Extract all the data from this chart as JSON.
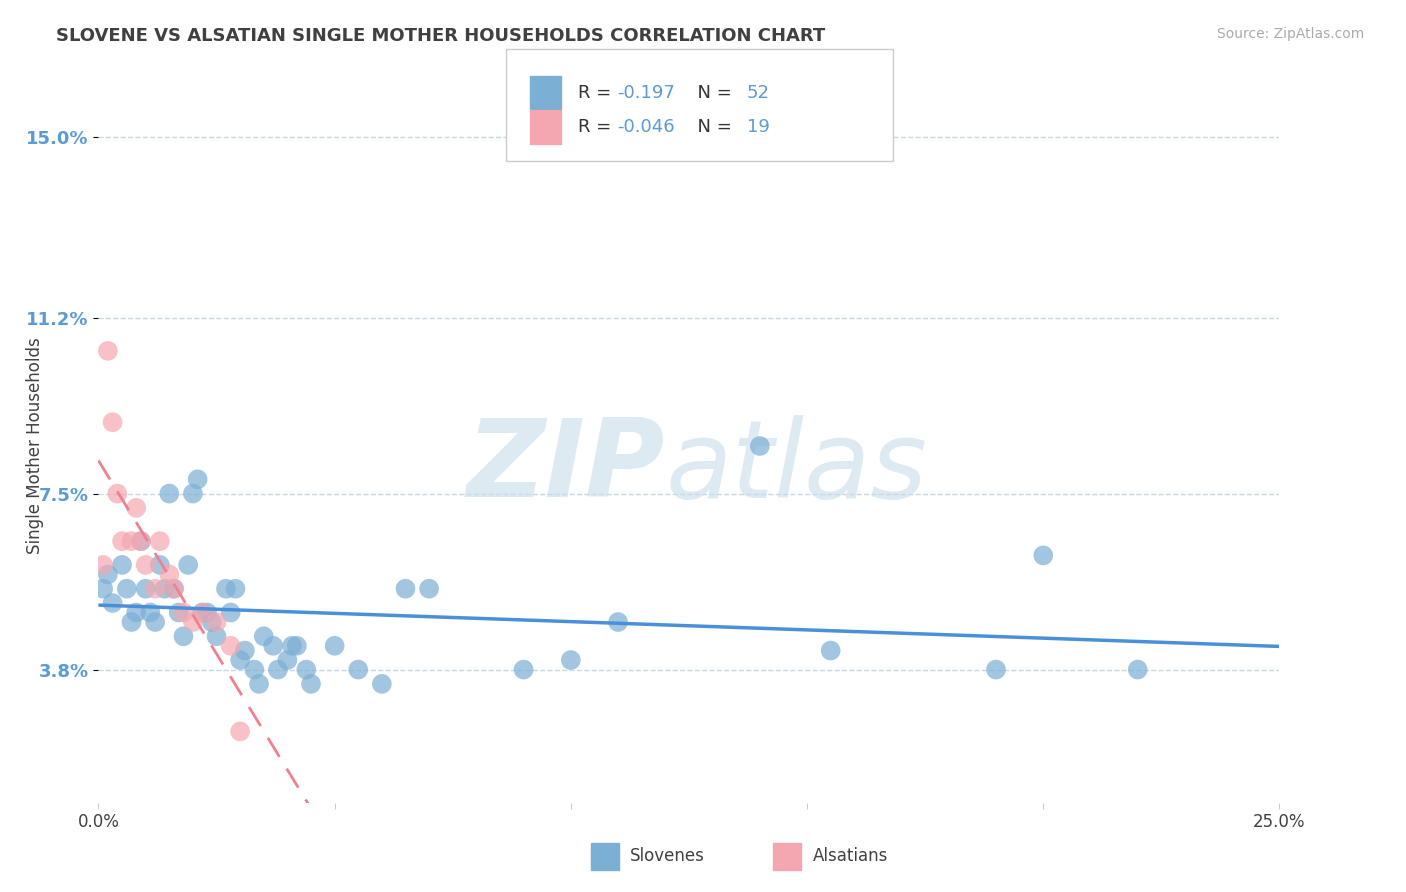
{
  "title": "SLOVENE VS ALSATIAN SINGLE MOTHER HOUSEHOLDS CORRELATION CHART",
  "source_text": "Source: ZipAtlas.com",
  "ylabel": "Single Mother Households",
  "xlim": [
    0.0,
    0.25
  ],
  "ylim": [
    0.01,
    0.16
  ],
  "yticks": [
    0.038,
    0.075,
    0.112,
    0.15
  ],
  "ytick_labels": [
    "3.8%",
    "7.5%",
    "11.2%",
    "15.0%"
  ],
  "xticks": [
    0.0,
    0.05,
    0.1,
    0.15,
    0.2,
    0.25
  ],
  "xtick_labels": [
    "0.0%",
    "",
    "",
    "",
    "",
    "25.0%"
  ],
  "slovene_color": "#7bafd4",
  "alsatian_color": "#f4a7b0",
  "slovene_line_color": "#4a90d9",
  "alsatian_line_color": "#f08090",
  "R_slovene": -0.197,
  "N_slovene": 52,
  "R_alsatian": -0.046,
  "N_alsatian": 19,
  "background_color": "#ffffff",
  "grid_color": "#b8cfe0",
  "axis_label_color": "#5b9bd5",
  "title_color": "#404040",
  "legend_label_slovene": "Slovenes",
  "legend_label_alsatian": "Alsatians",
  "slovene_x": [
    0.001,
    0.002,
    0.003,
    0.005,
    0.006,
    0.007,
    0.008,
    0.009,
    0.01,
    0.011,
    0.012,
    0.013,
    0.014,
    0.015,
    0.016,
    0.017,
    0.018,
    0.019,
    0.02,
    0.021,
    0.022,
    0.023,
    0.024,
    0.025,
    0.027,
    0.028,
    0.029,
    0.03,
    0.031,
    0.033,
    0.034,
    0.035,
    0.037,
    0.038,
    0.04,
    0.041,
    0.042,
    0.044,
    0.045,
    0.05,
    0.055,
    0.06,
    0.065,
    0.07,
    0.09,
    0.1,
    0.11,
    0.14,
    0.155,
    0.19,
    0.2,
    0.22
  ],
  "slovene_y": [
    0.055,
    0.058,
    0.052,
    0.06,
    0.055,
    0.048,
    0.05,
    0.065,
    0.055,
    0.05,
    0.048,
    0.06,
    0.055,
    0.075,
    0.055,
    0.05,
    0.045,
    0.06,
    0.075,
    0.078,
    0.05,
    0.05,
    0.048,
    0.045,
    0.055,
    0.05,
    0.055,
    0.04,
    0.042,
    0.038,
    0.035,
    0.045,
    0.043,
    0.038,
    0.04,
    0.043,
    0.043,
    0.038,
    0.035,
    0.043,
    0.038,
    0.035,
    0.055,
    0.055,
    0.038,
    0.04,
    0.048,
    0.085,
    0.042,
    0.038,
    0.062,
    0.038
  ],
  "alsatian_x": [
    0.001,
    0.002,
    0.003,
    0.004,
    0.005,
    0.007,
    0.008,
    0.009,
    0.01,
    0.012,
    0.013,
    0.015,
    0.016,
    0.018,
    0.02,
    0.022,
    0.025,
    0.028,
    0.03
  ],
  "alsatian_y": [
    0.06,
    0.105,
    0.09,
    0.075,
    0.065,
    0.065,
    0.072,
    0.065,
    0.06,
    0.055,
    0.065,
    0.058,
    0.055,
    0.05,
    0.048,
    0.05,
    0.048,
    0.043,
    0.025
  ]
}
